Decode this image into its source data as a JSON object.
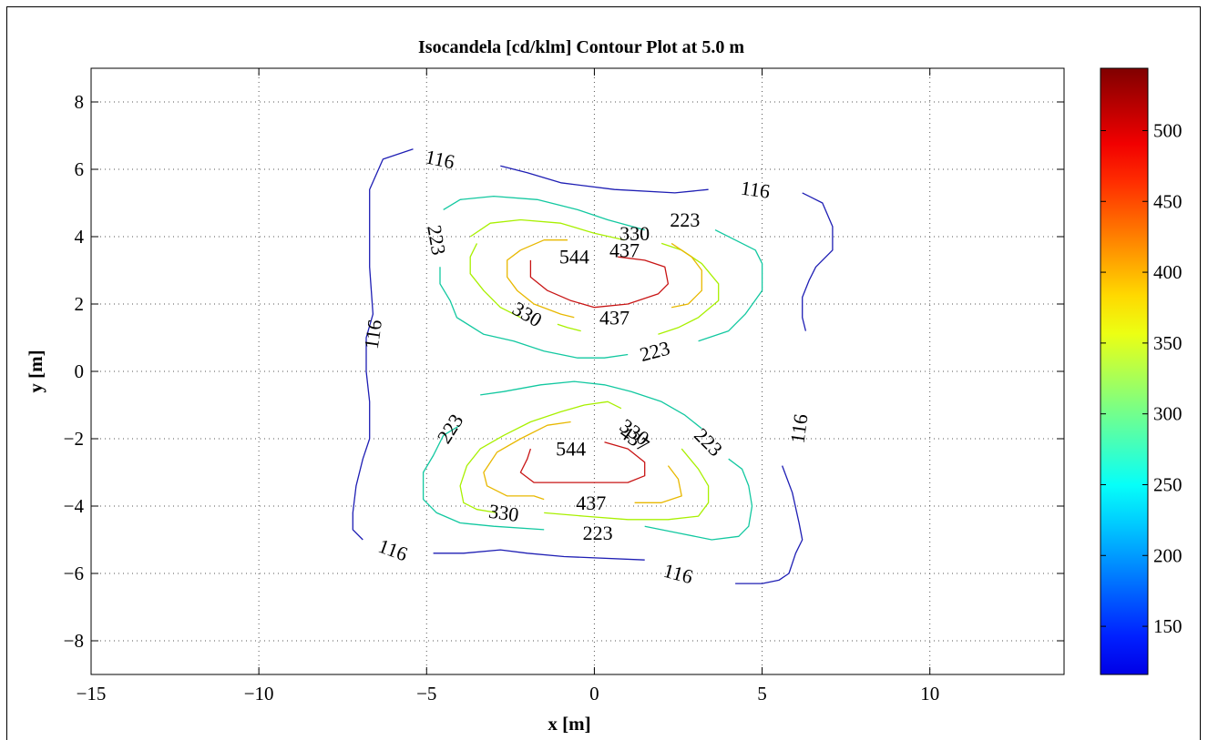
{
  "chart_data": {
    "type": "contour",
    "title": "Isocandela [cd/klm] Contour Plot at 5.0 m",
    "xlabel": "x [m]",
    "ylabel": "y [m]",
    "xlim": [
      -15,
      14
    ],
    "ylim": [
      -9,
      9
    ],
    "xticks": [
      -15,
      -10,
      -5,
      0,
      5,
      10
    ],
    "yticks": [
      -8,
      -6,
      -4,
      -2,
      0,
      2,
      4,
      6,
      8
    ],
    "xtick_labels": [
      "−15",
      "−10",
      "−5",
      "0",
      "5",
      "10"
    ],
    "ytick_labels": [
      "−8",
      "−6",
      "−4",
      "−2",
      "0",
      "2",
      "4",
      "6",
      "8"
    ],
    "grid": true,
    "grid_style": "dotted",
    "colormap": "jet",
    "colorbar": {
      "range": [
        116,
        544
      ],
      "ticks": [
        150,
        200,
        250,
        300,
        350,
        400,
        450,
        500
      ],
      "tick_labels": [
        "150",
        "200",
        "250",
        "300",
        "350",
        "400",
        "450",
        "500"
      ]
    },
    "contour_levels": [
      116,
      223,
      330,
      437,
      544
    ],
    "contours": [
      {
        "level": 116,
        "color": "#1e1eb4",
        "segments": [
          [
            [
              -5.4,
              6.6
            ],
            [
              -6.3,
              6.3
            ],
            [
              -6.7,
              5.4
            ],
            [
              -6.7,
              3.1
            ],
            [
              -6.6,
              1.7
            ],
            [
              -6.8,
              1.0
            ],
            [
              -6.8,
              0.0
            ],
            [
              -6.7,
              -0.9
            ],
            [
              -6.7,
              -2.0
            ],
            [
              -6.9,
              -2.6
            ],
            [
              -7.1,
              -3.4
            ],
            [
              -7.2,
              -4.2
            ],
            [
              -7.2,
              -4.7
            ],
            [
              -6.9,
              -5.0
            ]
          ],
          [
            [
              -2.8,
              6.1
            ],
            [
              -2.0,
              5.9
            ],
            [
              -1.0,
              5.6
            ],
            [
              0.6,
              5.4
            ],
            [
              2.4,
              5.3
            ],
            [
              3.4,
              5.4
            ]
          ],
          [
            [
              6.2,
              5.3
            ],
            [
              6.8,
              5.0
            ],
            [
              7.1,
              4.3
            ],
            [
              7.1,
              3.6
            ],
            [
              6.6,
              3.1
            ],
            [
              6.4,
              2.7
            ],
            [
              6.2,
              2.2
            ],
            [
              6.2,
              1.6
            ],
            [
              6.3,
              1.2
            ]
          ],
          [
            [
              5.6,
              -2.8
            ],
            [
              5.9,
              -3.6
            ],
            [
              6.1,
              -4.5
            ],
            [
              6.2,
              -5.0
            ],
            [
              6.0,
              -5.4
            ],
            [
              5.9,
              -5.7
            ],
            [
              5.8,
              -6.0
            ],
            [
              5.5,
              -6.2
            ],
            [
              5.0,
              -6.3
            ],
            [
              4.2,
              -6.3
            ]
          ],
          [
            [
              -4.8,
              -5.4
            ],
            [
              -3.9,
              -5.4
            ],
            [
              -2.8,
              -5.3
            ],
            [
              -2.0,
              -5.4
            ],
            [
              -0.9,
              -5.5
            ],
            [
              1.5,
              -5.6
            ]
          ]
        ]
      },
      {
        "level": 223,
        "color": "#12c8a0",
        "segments": [
          [
            [
              -4.5,
              4.8
            ],
            [
              -4.0,
              5.1
            ],
            [
              -3.0,
              5.2
            ],
            [
              -1.7,
              5.1
            ],
            [
              -0.5,
              4.8
            ],
            [
              0.4,
              4.5
            ],
            [
              1.5,
              4.2
            ]
          ],
          [
            [
              3.6,
              4.2
            ],
            [
              4.2,
              3.9
            ],
            [
              4.8,
              3.6
            ],
            [
              5.0,
              3.2
            ],
            [
              5.0,
              2.4
            ],
            [
              4.5,
              1.7
            ],
            [
              4.0,
              1.2
            ],
            [
              3.1,
              0.9
            ]
          ],
          [
            [
              1.0,
              0.5
            ],
            [
              0.3,
              0.4
            ],
            [
              -0.5,
              0.4
            ],
            [
              -1.5,
              0.6
            ],
            [
              -2.4,
              0.9
            ],
            [
              -3.3,
              1.1
            ],
            [
              -4.1,
              1.6
            ],
            [
              -4.3,
              2.1
            ],
            [
              -4.6,
              2.6
            ],
            [
              -4.6,
              3.1
            ]
          ],
          [
            [
              -3.4,
              -0.7
            ],
            [
              -2.7,
              -0.6
            ],
            [
              -1.6,
              -0.4
            ],
            [
              -0.6,
              -0.3
            ],
            [
              0.3,
              -0.4
            ],
            [
              1.1,
              -0.6
            ],
            [
              2.0,
              -0.9
            ],
            [
              2.7,
              -1.3
            ],
            [
              3.2,
              -1.7
            ]
          ],
          [
            [
              -4.0,
              -1.6
            ],
            [
              -4.5,
              -1.9
            ],
            [
              -4.8,
              -2.5
            ],
            [
              -5.1,
              -3.0
            ],
            [
              -5.1,
              -3.8
            ],
            [
              -4.7,
              -4.2
            ],
            [
              -4.0,
              -4.5
            ],
            [
              -3.0,
              -4.6
            ],
            [
              -1.5,
              -4.7
            ]
          ],
          [
            [
              1.5,
              -4.6
            ],
            [
              2.5,
              -4.8
            ],
            [
              3.5,
              -5.0
            ],
            [
              4.3,
              -4.9
            ],
            [
              4.6,
              -4.6
            ],
            [
              4.7,
              -4.0
            ],
            [
              4.6,
              -3.4
            ],
            [
              4.4,
              -2.9
            ],
            [
              4.0,
              -2.6
            ]
          ]
        ]
      },
      {
        "level": 330,
        "color": "#a8f000",
        "segments": [
          [
            [
              -3.5,
              3.8
            ],
            [
              -3.7,
              3.4
            ],
            [
              -3.7,
              2.9
            ],
            [
              -3.3,
              2.4
            ],
            [
              -2.8,
              1.9
            ],
            [
              -2.2,
              1.6
            ]
          ],
          [
            [
              -3.7,
              4.0
            ],
            [
              -3.1,
              4.4
            ],
            [
              -2.2,
              4.5
            ],
            [
              -1.0,
              4.4
            ],
            [
              0.0,
              4.1
            ],
            [
              0.9,
              3.9
            ]
          ],
          [
            [
              2.0,
              3.8
            ],
            [
              2.6,
              3.6
            ],
            [
              3.2,
              3.2
            ],
            [
              3.7,
              2.6
            ],
            [
              3.7,
              2.1
            ],
            [
              3.1,
              1.6
            ],
            [
              2.5,
              1.3
            ],
            [
              1.9,
              1.1
            ]
          ],
          [
            [
              -0.4,
              1.2
            ],
            [
              -0.8,
              1.3
            ],
            [
              -1.1,
              1.4
            ]
          ],
          [
            [
              0.8,
              -1.1
            ],
            [
              0.4,
              -0.9
            ],
            [
              -0.3,
              -1.0
            ],
            [
              -1.0,
              -1.2
            ],
            [
              -1.9,
              -1.5
            ],
            [
              -2.7,
              -1.9
            ],
            [
              -3.4,
              -2.3
            ],
            [
              -3.8,
              -2.8
            ],
            [
              -4.0,
              -3.4
            ],
            [
              -3.9,
              -3.9
            ],
            [
              -3.5,
              -4.1
            ],
            [
              -2.9,
              -4.2
            ]
          ],
          [
            [
              -1.5,
              -4.2
            ],
            [
              -0.3,
              -4.3
            ],
            [
              1.0,
              -4.4
            ],
            [
              2.2,
              -4.4
            ],
            [
              3.1,
              -4.3
            ],
            [
              3.4,
              -3.9
            ],
            [
              3.4,
              -3.4
            ],
            [
              3.1,
              -2.9
            ],
            [
              2.6,
              -2.3
            ]
          ]
        ]
      },
      {
        "level": 437,
        "color": "#e8b800",
        "segments": [
          [
            [
              -3.0,
              1.1
            ]
          ],
          [
            [
              -2.2,
              3.6
            ],
            [
              -2.6,
              3.3
            ],
            [
              -2.6,
              2.8
            ],
            [
              -2.3,
              2.4
            ],
            [
              -1.8,
              2.0
            ],
            [
              -1.0,
              1.7
            ],
            [
              -0.6,
              1.6
            ]
          ],
          [
            [
              -2.2,
              3.6
            ],
            [
              -1.5,
              3.9
            ],
            [
              -0.8,
              3.9
            ]
          ],
          [
            [
              2.3,
              3.8
            ],
            [
              2.9,
              3.4
            ],
            [
              3.2,
              3.0
            ],
            [
              3.2,
              2.4
            ],
            [
              2.8,
              2.0
            ],
            [
              2.3,
              1.9
            ]
          ],
          [
            [
              -0.7,
              -1.5
            ],
            [
              -1.4,
              -1.6
            ],
            [
              -2.2,
              -2.0
            ],
            [
              -2.9,
              -2.4
            ],
            [
              -3.3,
              -3.0
            ],
            [
              -3.2,
              -3.4
            ],
            [
              -2.6,
              -3.7
            ],
            [
              -1.8,
              -3.7
            ],
            [
              -1.5,
              -3.8
            ]
          ],
          [
            [
              1.2,
              -3.9
            ],
            [
              2.0,
              -3.9
            ],
            [
              2.6,
              -3.7
            ],
            [
              2.5,
              -3.2
            ],
            [
              2.2,
              -2.8
            ]
          ]
        ]
      },
      {
        "level": 544,
        "color": "#c81414",
        "segments": [
          [
            [
              -1.9,
              3.3
            ],
            [
              -1.9,
              2.8
            ],
            [
              -1.4,
              2.4
            ],
            [
              -0.7,
              2.1
            ],
            [
              0.0,
              1.9
            ],
            [
              1.0,
              2.0
            ],
            [
              1.9,
              2.3
            ],
            [
              2.2,
              2.6
            ],
            [
              2.1,
              3.1
            ],
            [
              1.5,
              3.3
            ],
            [
              0.7,
              3.4
            ]
          ],
          [
            [
              0.3,
              -2.1
            ],
            [
              1.0,
              -2.3
            ],
            [
              1.5,
              -2.7
            ],
            [
              1.5,
              -3.1
            ],
            [
              1.0,
              -3.3
            ],
            [
              0.1,
              -3.3
            ],
            [
              -0.9,
              -3.3
            ],
            [
              -1.8,
              -3.3
            ],
            [
              -2.2,
              -3.0
            ],
            [
              -2.0,
              -2.6
            ],
            [
              -1.9,
              -2.3
            ]
          ]
        ]
      }
    ],
    "contour_labels": [
      {
        "text": "116",
        "x": -4.6,
        "y": 6.3,
        "angle": 12
      },
      {
        "text": "116",
        "x": 4.8,
        "y": 5.4,
        "angle": 8
      },
      {
        "text": "116",
        "x": -6.6,
        "y": 1.1,
        "angle": -82
      },
      {
        "text": "116",
        "x": 6.1,
        "y": -1.7,
        "angle": -82
      },
      {
        "text": "116",
        "x": -6.0,
        "y": -5.3,
        "angle": 20
      },
      {
        "text": "116",
        "x": 2.5,
        "y": -6.0,
        "angle": 15
      },
      {
        "text": "223",
        "x": 2.7,
        "y": 4.5,
        "angle": 0
      },
      {
        "text": "223",
        "x": -4.7,
        "y": 3.9,
        "angle": 80
      },
      {
        "text": "223",
        "x": 1.8,
        "y": 0.6,
        "angle": -15
      },
      {
        "text": "223",
        "x": -4.3,
        "y": -1.7,
        "angle": -58
      },
      {
        "text": "223",
        "x": 3.4,
        "y": -2.1,
        "angle": 45
      },
      {
        "text": "223",
        "x": 0.1,
        "y": -4.8,
        "angle": 0
      },
      {
        "text": "330",
        "x": 1.2,
        "y": 4.1,
        "angle": 0
      },
      {
        "text": "330",
        "x": -2.0,
        "y": 1.7,
        "angle": 30
      },
      {
        "text": "330",
        "x": 1.2,
        "y": -1.8,
        "angle": 35
      },
      {
        "text": "330",
        "x": -2.7,
        "y": -4.2,
        "angle": 8
      },
      {
        "text": "437",
        "x": 0.9,
        "y": 3.6,
        "angle": 0
      },
      {
        "text": "437",
        "x": 0.6,
        "y": 1.6,
        "angle": 0
      },
      {
        "text": "437",
        "x": 1.2,
        "y": -2.0,
        "angle": 35
      },
      {
        "text": "437",
        "x": -0.1,
        "y": -3.9,
        "angle": 0
      },
      {
        "text": "544",
        "x": -0.6,
        "y": 3.4,
        "angle": 0
      },
      {
        "text": "544",
        "x": -0.7,
        "y": -2.3,
        "angle": 0
      }
    ]
  }
}
